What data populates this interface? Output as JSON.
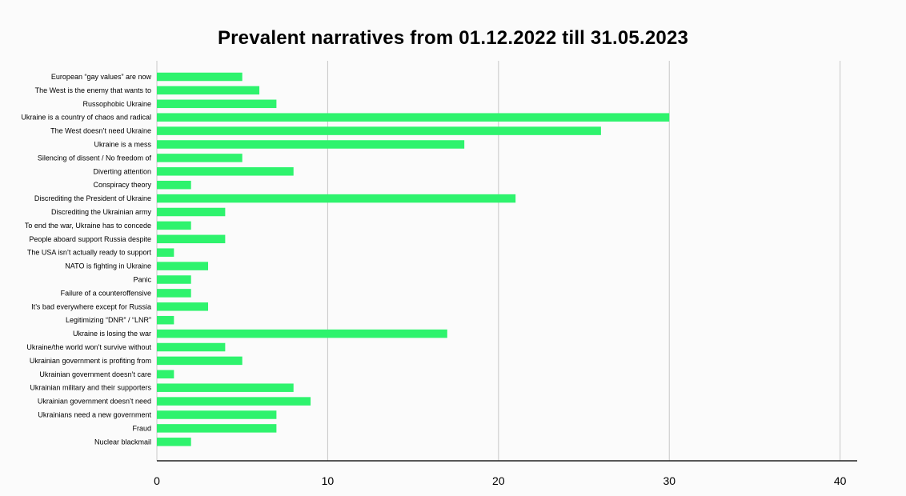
{
  "chart_data": {
    "type": "bar",
    "orientation": "horizontal",
    "title": "Prevalent narratives from 01.12.2022 till 31.05.2023",
    "categories": [
      "European “gay values” are now",
      "The West is the enemy that wants to",
      "Russophobic Ukraine",
      "Ukraine is a country of chaos and radical",
      "The West doesn’t need Ukraine",
      "Ukraine is a mess",
      "Silencing of dissent / No freedom of",
      "Diverting attention",
      "Conspiracy theory",
      "Discrediting the President of Ukraine",
      "Discrediting the Ukrainian army",
      "To end the war, Ukraine has to concede",
      "People aboard support Russia despite",
      "The USA isn’t actually ready to support",
      "NATO is fighting in Ukraine",
      "Panic",
      "Failure of a counteroffensive",
      "It’s bad everywhere except for Russia",
      "Legitimizing “DNR” / “LNR”",
      "Ukraine is losing the war",
      "Ukraine/the world won’t survive without",
      "Ukrainian government is profiting from",
      "Ukrainian government doesn’t care",
      "Ukrainian military and their supporters",
      "Ukrainian government doesn’t need",
      "Ukrainians need a new government",
      "Fraud",
      "Nuclear blackmail"
    ],
    "values": [
      5,
      6,
      7,
      30,
      26,
      18,
      5,
      8,
      2,
      21,
      4,
      2,
      4,
      1,
      3,
      2,
      2,
      3,
      1,
      17,
      4,
      5,
      1,
      8,
      9,
      7,
      7,
      2
    ],
    "xlim": [
      0,
      41
    ],
    "xticks": [
      0,
      10,
      20,
      30,
      40
    ],
    "xlabel": "",
    "ylabel": "",
    "grid": "vertical",
    "legend": "none",
    "colors": {
      "bar": "#2ef36d",
      "grid": "#c8c8c8",
      "axis": "#222222",
      "background": "#fbfbfb"
    }
  }
}
